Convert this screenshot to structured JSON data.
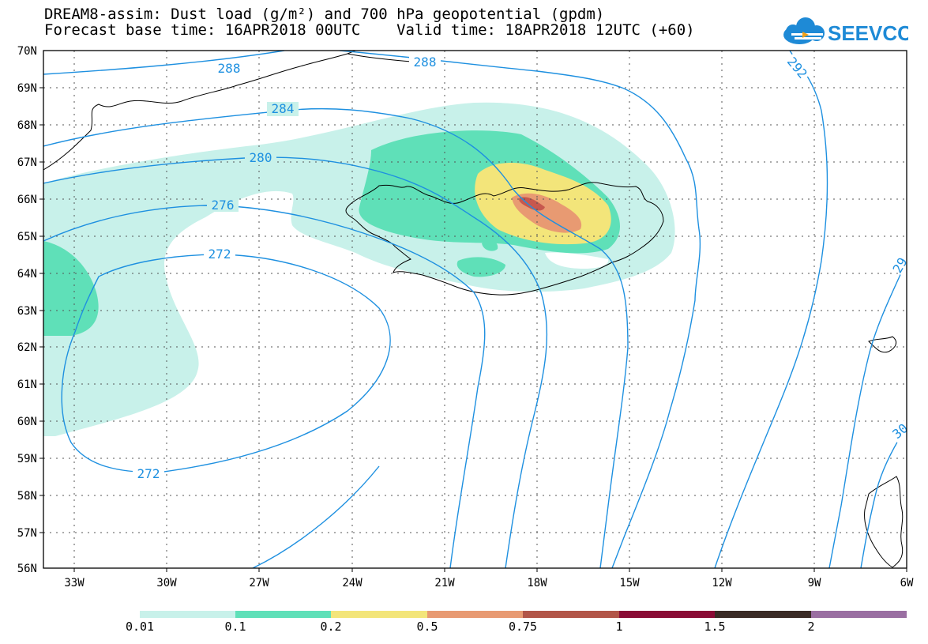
{
  "title_line1": "DREAM8-assim: Dust load (g/m²) and 700 hPa geopotential (gpdm)",
  "title_line2": "Forecast base time: 16APR2018 00UTC    Valid time: 18APR2018 12UTC (+60)",
  "logo_text": "SEEVCCC",
  "map": {
    "lat_labels": [
      "70N",
      "69N",
      "68N",
      "67N",
      "66N",
      "65N",
      "64N",
      "63N",
      "62N",
      "61N",
      "60N",
      "59N",
      "58N",
      "57N",
      "56N"
    ],
    "lon_labels": [
      "33W",
      "30W",
      "27W",
      "24W",
      "21W",
      "18W",
      "15W",
      "12W",
      "9W",
      "6W"
    ],
    "contour_labels": [
      "288",
      "288",
      "292",
      "284",
      "280",
      "276",
      "272",
      "272",
      "29",
      "30"
    ],
    "contour_color": "#1e90e0",
    "coast_color": "#000000"
  },
  "colorbar": {
    "labels": [
      "0.01",
      "0.1",
      "0.2",
      "0.5",
      "0.75",
      "1",
      "1.5",
      "2"
    ],
    "colors": [
      "#c8f1ea",
      "#5fe0b8",
      "#f3e57a",
      "#e89a72",
      "#b25548",
      "#8a0b35",
      "#3a2b25",
      "#9a6fa2"
    ]
  },
  "dust_colors": {
    "level1": "#c8f1ea",
    "level2": "#5fe0b8",
    "level3": "#f3e57a",
    "level4": "#e89a72",
    "level5": "#c7584e"
  }
}
